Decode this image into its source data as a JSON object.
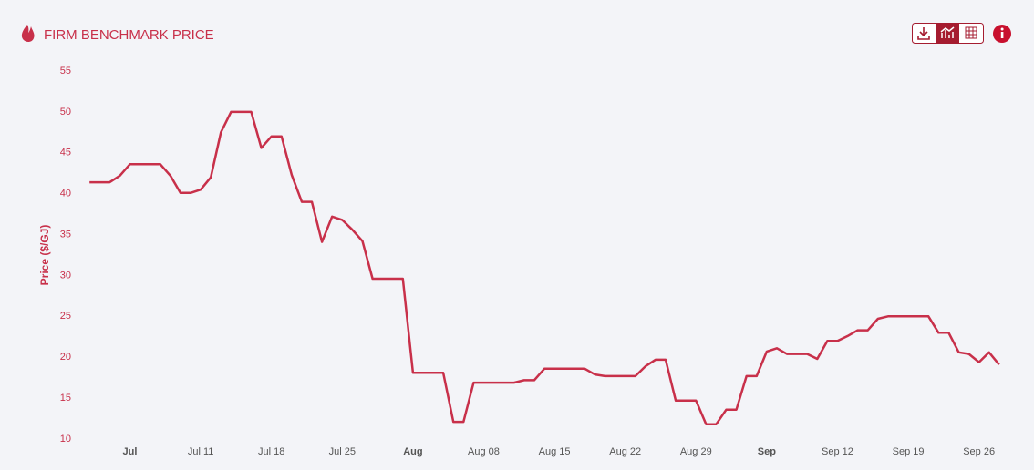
{
  "chart_data": {
    "type": "line",
    "title": "FIRM BENCHMARK PRICE",
    "y_label": "Price ($/GJ)",
    "x": [
      "Jun 30",
      "Jul 01",
      "Jul 02",
      "Jul 03",
      "Jul 04",
      "Jul 05",
      "Jul 06",
      "Jul 07",
      "Jul 08",
      "Jul 09",
      "Jul 10",
      "Jul 11",
      "Jul 12",
      "Jul 13",
      "Jul 14",
      "Jul 15",
      "Jul 16",
      "Jul 17",
      "Jul 18",
      "Jul 19",
      "Jul 20",
      "Jul 21",
      "Jul 22",
      "Jul 23",
      "Jul 24",
      "Jul 25",
      "Jul 26",
      "Jul 27",
      "Jul 28",
      "Jul 29",
      "Jul 30",
      "Jul 31",
      "Aug 01",
      "Aug 02",
      "Aug 03",
      "Aug 04",
      "Aug 05",
      "Aug 06",
      "Aug 07",
      "Aug 08",
      "Aug 09",
      "Aug 10",
      "Aug 11",
      "Aug 12",
      "Aug 13",
      "Aug 14",
      "Aug 15",
      "Aug 16",
      "Aug 17",
      "Aug 18",
      "Aug 19",
      "Aug 20",
      "Aug 21",
      "Aug 22",
      "Aug 23",
      "Aug 24",
      "Aug 25",
      "Aug 26",
      "Aug 27",
      "Aug 28",
      "Aug 29",
      "Aug 30",
      "Aug 31",
      "Sep 01",
      "Sep 02",
      "Sep 03",
      "Sep 04",
      "Sep 05",
      "Sep 06",
      "Sep 07",
      "Sep 08",
      "Sep 09",
      "Sep 10",
      "Sep 11",
      "Sep 12",
      "Sep 13",
      "Sep 14",
      "Sep 15",
      "Sep 16",
      "Sep 17",
      "Sep 18",
      "Sep 19",
      "Sep 20",
      "Sep 21",
      "Sep 22",
      "Sep 23",
      "Sep 24",
      "Sep 25",
      "Sep 26",
      "Sep 27",
      "Sep 28"
    ],
    "series": [
      {
        "color": "#c8304a",
        "values": [
          41.4,
          41.4,
          41.4,
          42.2,
          43.6,
          43.6,
          43.6,
          43.6,
          42.2,
          40.1,
          40.1,
          40.5,
          42,
          47.5,
          50,
          50,
          50,
          45.6,
          47,
          47,
          42.3,
          39,
          39,
          34.1,
          37.2,
          36.8,
          35.6,
          34.2,
          29.6,
          29.6,
          29.6,
          29.6,
          18.1,
          18.1,
          18.1,
          18.1,
          12.1,
          12.1,
          16.9,
          16.9,
          16.9,
          16.9,
          16.9,
          17.2,
          17.2,
          18.6,
          18.6,
          18.6,
          18.6,
          18.6,
          17.9,
          17.7,
          17.7,
          17.7,
          17.7,
          18.9,
          19.7,
          19.7,
          14.7,
          14.7,
          14.7,
          11.8,
          11.8,
          13.6,
          13.6,
          17.7,
          17.7,
          20.7,
          21.1,
          20.4,
          20.4,
          20.4,
          19.8,
          22,
          22,
          22.6,
          23.3,
          23.3,
          24.7,
          25,
          25,
          25,
          25,
          25,
          23,
          23,
          20.6,
          20.4,
          19.4,
          20.6,
          19.1
        ]
      }
    ],
    "xlim": [
      "Jun 28",
      "Sep 30"
    ],
    "xticks": [
      {
        "value": "Jul 04",
        "label": "Jul"
      },
      "Jul 11",
      "Jul 18",
      "Jul 25",
      {
        "value": "Aug 01",
        "label": "Aug"
      },
      "Aug 08",
      "Aug 15",
      "Aug 22",
      "Aug 29",
      {
        "value": "Sep 05",
        "label": "Sep"
      },
      "Sep 12",
      "Sep 19",
      "Sep 26"
    ],
    "ylim": [
      10,
      55
    ],
    "yticks": [
      10,
      15,
      20,
      25,
      30,
      35,
      40,
      45,
      50,
      55
    ],
    "grid": false
  }
}
